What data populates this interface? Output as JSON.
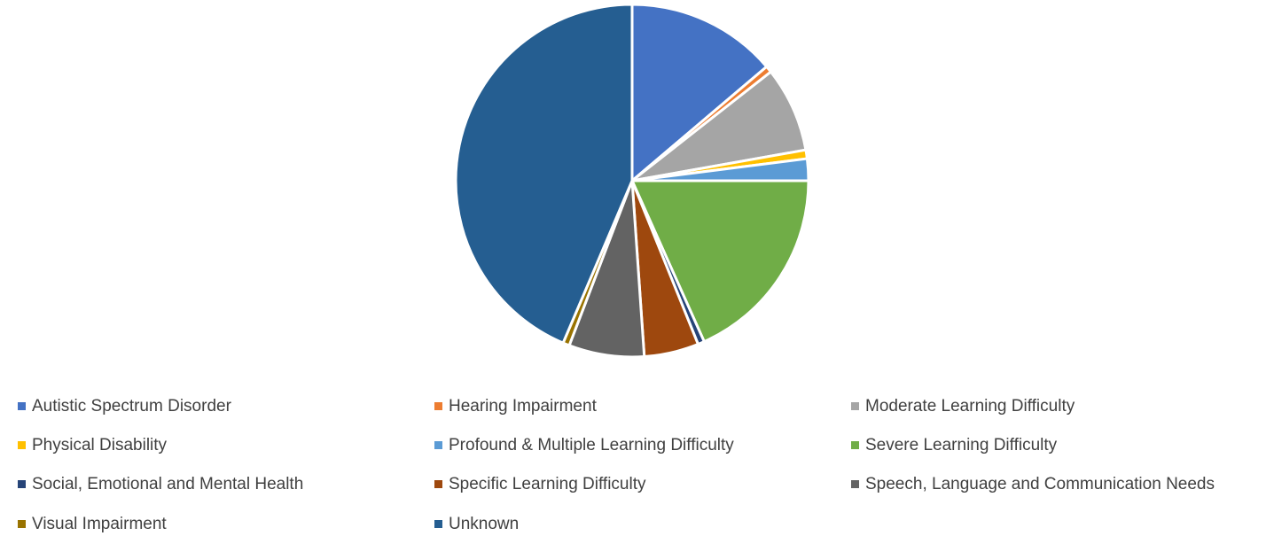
{
  "chart_data": {
    "type": "pie",
    "categories": [
      "Autistic Spectrum Disorder",
      "Hearing Impairment",
      "Moderate Learning Difficulty",
      "Physical Disability",
      "Profound & Multiple Learning Difficulty",
      "Severe Learning Difficulty",
      "Social, Emotional and Mental Health",
      "Specific Learning Difficulty",
      "Speech, Language and Communication Needs",
      "Visual Impairment",
      "Unknown"
    ],
    "values": [
      13.8,
      0.6,
      7.8,
      0.8,
      2,
      18.3,
      0.6,
      5,
      6.9,
      0.6,
      43.6
    ],
    "colors": [
      "#4472c4",
      "#ed7d31",
      "#a5a5a5",
      "#ffc000",
      "#5b9bd5",
      "#70ad47",
      "#264478",
      "#9e480e",
      "#636363",
      "#997300",
      "#255e91"
    ],
    "legend": "bottom"
  }
}
